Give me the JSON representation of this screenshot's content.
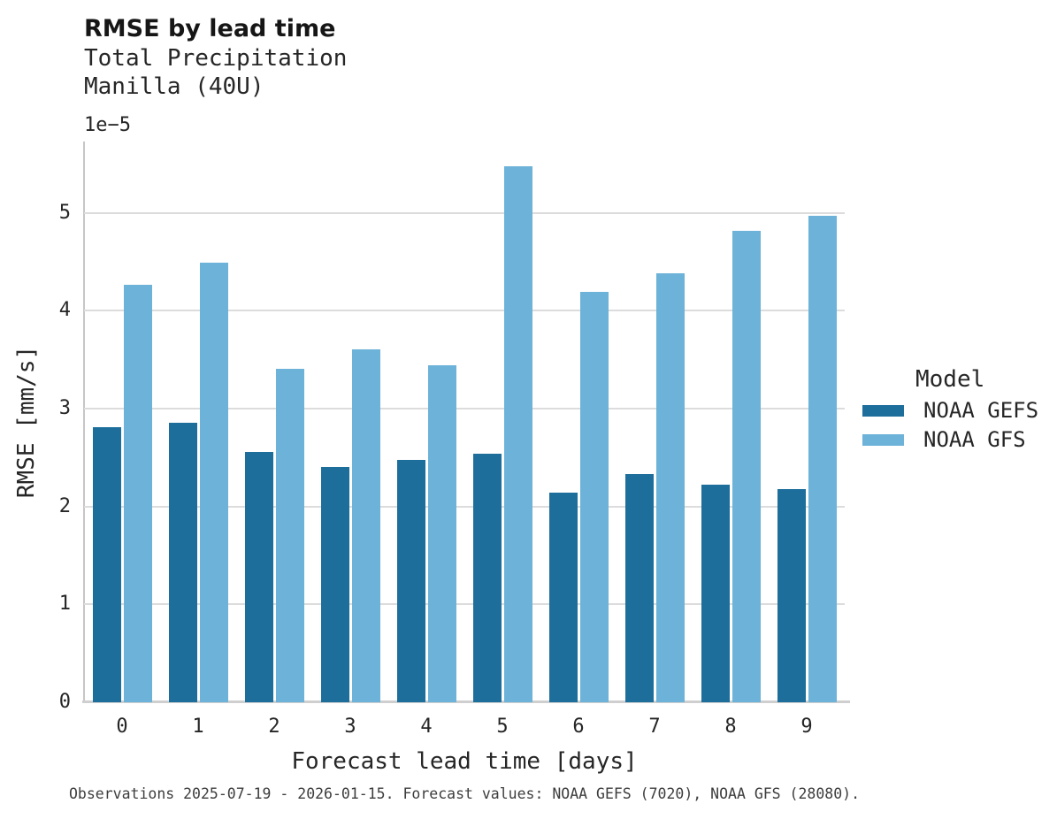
{
  "header": {
    "title": "RMSE by lead time",
    "subtitle_line1": "Total Precipitation",
    "subtitle_line2": "Manilla (40U)"
  },
  "axes": {
    "y_offset_text": "1e−5",
    "xlabel": "Forecast lead time [days]",
    "ylabel": "RMSE [mm/s]"
  },
  "legend": {
    "title": "Model",
    "items": [
      {
        "label": "NOAA GEFS",
        "color": "#1e6e9c"
      },
      {
        "label": "NOAA GFS",
        "color": "#6db2d8"
      }
    ]
  },
  "footnote": "Observations 2025-07-19 - 2026-01-15. Forecast values: NOAA GEFS (7020), NOAA GFS (28080).",
  "chart_data": {
    "type": "bar",
    "title": "RMSE by lead time",
    "subtitle": [
      "Total Precipitation",
      "Manilla (40U)"
    ],
    "categories": [
      0,
      1,
      2,
      3,
      4,
      5,
      6,
      7,
      8,
      9
    ],
    "series": [
      {
        "name": "NOAA GEFS",
        "color": "#1e6e9c",
        "values": [
          2.81,
          2.86,
          2.56,
          2.4,
          2.48,
          2.54,
          2.14,
          2.33,
          2.22,
          2.18
        ]
      },
      {
        "name": "NOAA GFS",
        "color": "#6db2d8",
        "values": [
          4.27,
          4.49,
          3.41,
          3.61,
          3.44,
          5.48,
          4.19,
          4.38,
          4.82,
          4.97
        ]
      }
    ],
    "value_units": "×1e−5 mm/s",
    "xlabel": "Forecast lead time [days]",
    "ylabel": "RMSE [mm/s]",
    "ylim": [
      0,
      5.73
    ],
    "yticks": [
      0,
      1,
      2,
      3,
      4,
      5
    ],
    "axis_offset_text": "1e−5",
    "grid": "horizontal",
    "legend_position": "right",
    "legend_title": "Model"
  }
}
